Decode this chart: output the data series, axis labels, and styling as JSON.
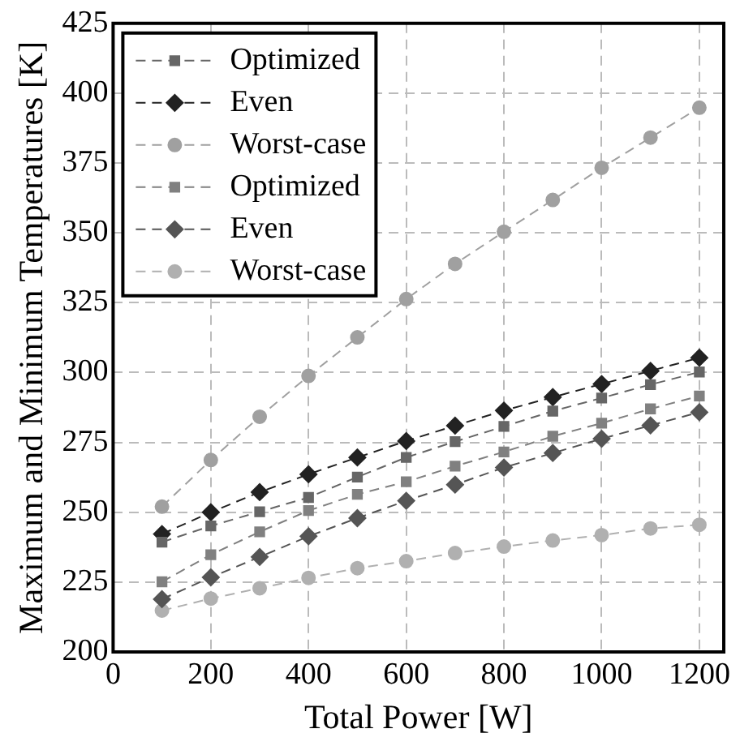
{
  "chart_data": {
    "type": "line",
    "xlabel": "Total Power [W]",
    "ylabel": "Maximum and Minimum Temperatures [K]",
    "x": [
      100,
      200,
      300,
      400,
      500,
      600,
      700,
      800,
      900,
      1000,
      1100,
      1200
    ],
    "xlim": [
      0,
      1250
    ],
    "xticks": [
      0,
      200,
      400,
      600,
      800,
      1000,
      1200
    ],
    "ylim": [
      200,
      425
    ],
    "yticks": [
      200,
      225,
      250,
      275,
      300,
      325,
      350,
      375,
      400,
      425
    ],
    "grid": true,
    "legend": "top left",
    "line_style": "dashed",
    "series": [
      {
        "name": "Optimized",
        "color": "#666666",
        "marker": "square",
        "values": [
          239.3,
          245.1,
          250.2,
          255.3,
          262.6,
          269.6,
          275.3,
          280.7,
          286.2,
          290.9,
          295.7,
          300.2
        ]
      },
      {
        "name": "Even",
        "color": "#222222",
        "marker": "diamond",
        "values": [
          242.2,
          250,
          257.2,
          263.6,
          269.6,
          275.5,
          281,
          286.4,
          291.2,
          295.9,
          300.6,
          305.3
        ]
      },
      {
        "name": "Worst-case",
        "color": "#a0a0a0",
        "marker": "circle",
        "values": [
          252,
          268.7,
          284.2,
          298.8,
          312.6,
          326.3,
          338.9,
          350.4,
          361.8,
          373.3,
          384.1,
          394.8
        ]
      },
      {
        "name": "Optimized",
        "color": "#808080",
        "marker": "square",
        "values": [
          225.1,
          234.8,
          243,
          250.6,
          256.4,
          260.9,
          266.5,
          271.6,
          277.2,
          281.9,
          287,
          291.6
        ]
      },
      {
        "name": "Even",
        "color": "#555555",
        "marker": "diamond",
        "values": [
          218.9,
          226.7,
          234,
          241.4,
          247.9,
          254.1,
          259.9,
          266,
          271.2,
          276.3,
          281.1,
          285.8
        ]
      },
      {
        "name": "Worst-case",
        "color": "#b0b0b0",
        "marker": "circle",
        "values": [
          214.8,
          219.1,
          222.8,
          226.5,
          230,
          232.5,
          235.4,
          237.7,
          239.9,
          241.8,
          244.2,
          245.5
        ]
      }
    ]
  }
}
